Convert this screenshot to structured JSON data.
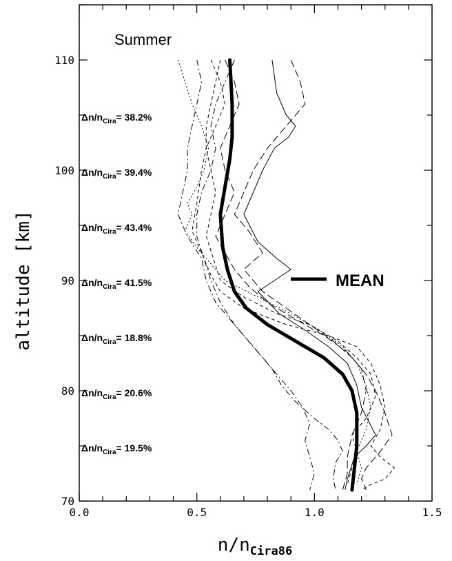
{
  "chart_data": {
    "type": "line",
    "title": "Summer",
    "xlabel": "n/n",
    "xlabel_sub": "Cira86",
    "ylabel": "altitude [km]",
    "xlim": [
      0.0,
      1.5
    ],
    "ylim": [
      70,
      115
    ],
    "x_ticks": [
      {
        "value": 0.0,
        "label": "0.0"
      },
      {
        "value": 0.5,
        "label": "0.5"
      },
      {
        "value": 1.0,
        "label": "1.0"
      },
      {
        "value": 1.5,
        "label": "1.5"
      }
    ],
    "y_ticks": [
      {
        "value": 70,
        "label": "70"
      },
      {
        "value": 80,
        "label": "80"
      },
      {
        "value": 90,
        "label": "90"
      },
      {
        "value": 100,
        "label": "100"
      },
      {
        "value": 110,
        "label": "110"
      }
    ],
    "legend": {
      "label": "MEAN",
      "placement": "right-middle"
    },
    "grid": false,
    "annotations": [
      {
        "altitude": 105,
        "prefix": "Δn/n",
        "sub": "Cira",
        "value": "= 38.2%"
      },
      {
        "altitude": 100,
        "prefix": "Δn/n",
        "sub": "Cira",
        "value": "= 39.4%"
      },
      {
        "altitude": 95,
        "prefix": "Δn/n",
        "sub": "Cira",
        "value": "= 43.4%"
      },
      {
        "altitude": 90,
        "prefix": "Δn/n",
        "sub": "Cira",
        "value": "= 41.5%"
      },
      {
        "altitude": 85,
        "prefix": "Δn/n",
        "sub": "Cira",
        "value": "= 18.8%"
      },
      {
        "altitude": 80,
        "prefix": "Δn/n",
        "sub": "Cira",
        "value": "= 20.6%"
      },
      {
        "altitude": 75,
        "prefix": "Δn/n",
        "sub": "Cira",
        "value": "= 19.5%"
      }
    ],
    "mean_series": {
      "name": "MEAN",
      "style": "thick-solid",
      "points": [
        [
          0.64,
          110
        ],
        [
          0.65,
          106
        ],
        [
          0.65,
          103
        ],
        [
          0.64,
          101
        ],
        [
          0.62,
          98.5
        ],
        [
          0.6,
          96
        ],
        [
          0.61,
          93
        ],
        [
          0.63,
          91
        ],
        [
          0.66,
          89
        ],
        [
          0.71,
          87.5
        ],
        [
          0.8,
          86
        ],
        [
          0.92,
          84.5
        ],
        [
          1.04,
          83
        ],
        [
          1.12,
          81.5
        ],
        [
          1.16,
          80
        ],
        [
          1.18,
          78
        ],
        [
          1.18,
          75
        ],
        [
          1.17,
          73
        ],
        [
          1.16,
          71
        ]
      ]
    },
    "profiles": [
      {
        "style": "solid",
        "points": [
          [
            0.82,
            110
          ],
          [
            0.84,
            107
          ],
          [
            0.88,
            105
          ],
          [
            0.92,
            104
          ],
          [
            0.89,
            103
          ],
          [
            0.83,
            102
          ],
          [
            0.78,
            100
          ],
          [
            0.74,
            98
          ],
          [
            0.7,
            96
          ],
          [
            0.76,
            93.5
          ],
          [
            0.84,
            92
          ],
          [
            0.9,
            91
          ],
          [
            0.83,
            90
          ],
          [
            0.76,
            89
          ],
          [
            0.85,
            87
          ],
          [
            0.96,
            85.5
          ],
          [
            1.06,
            84
          ],
          [
            1.14,
            82.5
          ],
          [
            1.18,
            80.5
          ],
          [
            1.2,
            78.5
          ],
          [
            1.26,
            76
          ],
          [
            1.22,
            75
          ],
          [
            1.17,
            74
          ],
          [
            1.14,
            72
          ],
          [
            1.13,
            71
          ]
        ]
      },
      {
        "style": "longdash",
        "points": [
          [
            0.9,
            110
          ],
          [
            0.94,
            108
          ],
          [
            0.96,
            106
          ],
          [
            0.88,
            104
          ],
          [
            0.8,
            102
          ],
          [
            0.74,
            100
          ],
          [
            0.7,
            98
          ],
          [
            0.66,
            96
          ],
          [
            0.72,
            94.5
          ],
          [
            0.78,
            92.5
          ],
          [
            0.7,
            91
          ],
          [
            0.78,
            89
          ],
          [
            0.88,
            87.5
          ],
          [
            0.98,
            86
          ],
          [
            1.08,
            84.5
          ],
          [
            1.16,
            83
          ],
          [
            1.22,
            81.5
          ],
          [
            1.26,
            80
          ],
          [
            1.3,
            78
          ],
          [
            1.33,
            76
          ],
          [
            1.28,
            74.5
          ],
          [
            1.22,
            73
          ],
          [
            1.2,
            72
          ],
          [
            1.22,
            71
          ]
        ]
      },
      {
        "style": "dash",
        "points": [
          [
            0.56,
            110
          ],
          [
            0.6,
            108
          ],
          [
            0.62,
            106
          ],
          [
            0.58,
            104
          ],
          [
            0.54,
            102
          ],
          [
            0.52,
            100
          ],
          [
            0.5,
            97
          ],
          [
            0.48,
            94.5
          ],
          [
            0.52,
            92.5
          ],
          [
            0.56,
            90.5
          ],
          [
            0.6,
            89
          ],
          [
            0.7,
            87.5
          ],
          [
            0.88,
            86
          ],
          [
            1.06,
            85
          ],
          [
            1.18,
            84
          ],
          [
            1.24,
            82.5
          ],
          [
            1.28,
            80.5
          ],
          [
            1.3,
            78.5
          ],
          [
            1.28,
            76.5
          ],
          [
            1.24,
            75
          ],
          [
            1.28,
            74
          ],
          [
            1.34,
            73
          ],
          [
            1.3,
            72
          ],
          [
            1.24,
            71.5
          ],
          [
            1.2,
            71
          ]
        ]
      },
      {
        "style": "dashdot",
        "points": [
          [
            0.5,
            110
          ],
          [
            0.52,
            108
          ],
          [
            0.5,
            106
          ],
          [
            0.48,
            104
          ],
          [
            0.46,
            102
          ],
          [
            0.46,
            100
          ],
          [
            0.44,
            98
          ],
          [
            0.42,
            96
          ],
          [
            0.46,
            94
          ],
          [
            0.52,
            92
          ],
          [
            0.54,
            90
          ],
          [
            0.58,
            88
          ],
          [
            0.64,
            86.5
          ],
          [
            0.7,
            85
          ],
          [
            0.76,
            83.5
          ],
          [
            0.82,
            82
          ],
          [
            0.86,
            80.5
          ],
          [
            0.92,
            79
          ],
          [
            1.0,
            77.5
          ],
          [
            1.06,
            76.5
          ],
          [
            1.1,
            75.5
          ],
          [
            1.12,
            74.5
          ],
          [
            1.09,
            73.5
          ],
          [
            1.08,
            72
          ],
          [
            1.09,
            71
          ]
        ]
      },
      {
        "style": "dot",
        "points": [
          [
            0.42,
            110
          ],
          [
            0.45,
            108
          ],
          [
            0.48,
            106
          ],
          [
            0.52,
            104
          ],
          [
            0.55,
            102
          ],
          [
            0.53,
            100
          ],
          [
            0.5,
            98.5
          ],
          [
            0.46,
            97
          ],
          [
            0.48,
            96
          ],
          [
            0.45,
            94.5
          ],
          [
            0.5,
            93
          ],
          [
            0.56,
            91.5
          ],
          [
            0.62,
            90
          ],
          [
            0.76,
            88.5
          ],
          [
            0.9,
            87
          ],
          [
            1.02,
            85.5
          ],
          [
            1.12,
            84
          ],
          [
            1.18,
            82.5
          ],
          [
            1.22,
            80.5
          ],
          [
            1.24,
            78.5
          ],
          [
            1.22,
            76.5
          ],
          [
            1.18,
            74.5
          ],
          [
            1.2,
            73
          ],
          [
            1.18,
            71.5
          ]
        ]
      },
      {
        "style": "dash",
        "points": [
          [
            0.6,
            110
          ],
          [
            0.58,
            108
          ],
          [
            0.56,
            106
          ],
          [
            0.54,
            104
          ],
          [
            0.54,
            102
          ],
          [
            0.56,
            100
          ],
          [
            0.58,
            98
          ],
          [
            0.56,
            96
          ],
          [
            0.54,
            94
          ],
          [
            0.57,
            92
          ],
          [
            0.6,
            90
          ],
          [
            0.7,
            88.5
          ],
          [
            0.84,
            87
          ],
          [
            0.98,
            86
          ],
          [
            1.1,
            84.5
          ],
          [
            1.18,
            83
          ],
          [
            1.24,
            81.5
          ],
          [
            1.26,
            79.5
          ],
          [
            1.22,
            77.5
          ],
          [
            1.16,
            76
          ],
          [
            1.18,
            74.5
          ],
          [
            1.16,
            73
          ],
          [
            1.14,
            71.5
          ]
        ]
      },
      {
        "style": "dashdot",
        "points": [
          [
            0.66,
            110
          ],
          [
            0.62,
            108
          ],
          [
            0.58,
            106
          ],
          [
            0.56,
            104
          ],
          [
            0.58,
            102
          ],
          [
            0.56,
            100
          ],
          [
            0.52,
            98
          ],
          [
            0.5,
            96
          ],
          [
            0.5,
            94
          ],
          [
            0.53,
            92
          ],
          [
            0.56,
            90
          ],
          [
            0.6,
            88
          ],
          [
            0.66,
            86
          ],
          [
            0.72,
            84.5
          ],
          [
            0.78,
            83
          ],
          [
            0.84,
            81.5
          ],
          [
            0.9,
            80
          ],
          [
            0.95,
            78.5
          ],
          [
            0.98,
            77
          ],
          [
            0.96,
            75.5
          ],
          [
            0.98,
            74
          ],
          [
            1.0,
            72.5
          ],
          [
            0.98,
            71
          ]
        ]
      },
      {
        "style": "longdash",
        "points": [
          [
            0.62,
            110
          ],
          [
            0.66,
            108
          ],
          [
            0.68,
            106
          ],
          [
            0.64,
            104
          ],
          [
            0.6,
            102
          ],
          [
            0.62,
            100
          ],
          [
            0.66,
            98
          ],
          [
            0.62,
            96
          ],
          [
            0.58,
            94
          ],
          [
            0.62,
            92.5
          ],
          [
            0.66,
            91
          ],
          [
            0.72,
            89.5
          ],
          [
            0.8,
            88
          ],
          [
            0.92,
            86.5
          ],
          [
            1.04,
            85
          ],
          [
            1.14,
            83.5
          ],
          [
            1.2,
            82
          ],
          [
            1.22,
            80
          ],
          [
            1.2,
            78
          ],
          [
            1.16,
            76
          ],
          [
            1.14,
            74
          ],
          [
            1.14,
            72.5
          ],
          [
            1.12,
            71
          ]
        ]
      }
    ]
  }
}
